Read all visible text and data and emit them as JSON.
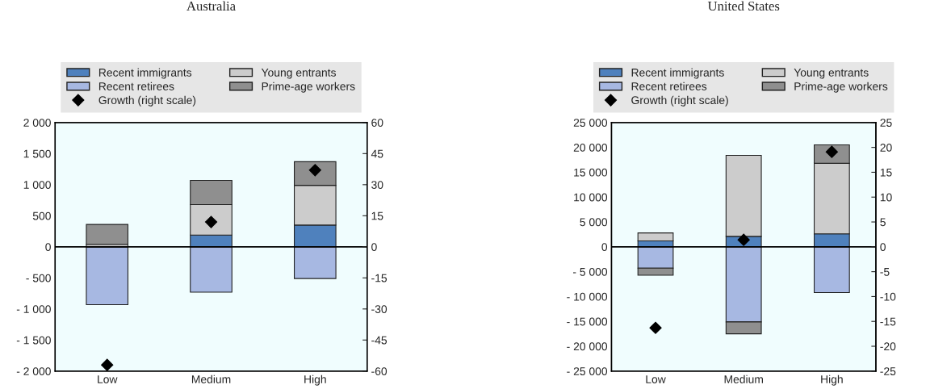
{
  "chart_data": [
    {
      "type": "bar",
      "title": "Australia",
      "categories": [
        "Low",
        "Medium",
        "High"
      ],
      "stacked": true,
      "legend": "top",
      "grid": false,
      "series": [
        {
          "name": "Recent immigrants",
          "color": "#4f81bd",
          "values": [
            null,
            190,
            350
          ]
        },
        {
          "name": "Recent retirees",
          "color": "#a7b8e2",
          "values": [
            -930,
            -730,
            -510
          ]
        },
        {
          "name": "Young entrants",
          "color": "#cccccc",
          "values": [
            40,
            490,
            640
          ]
        },
        {
          "name": "Prime-age workers",
          "color": "#8f8f8f",
          "values": [
            320,
            390,
            380
          ]
        },
        {
          "name": "Growth (right scale)",
          "type": "scatter",
          "axis": "y2",
          "marker": "diamond",
          "color": "#000000",
          "values": [
            -57,
            12,
            37
          ]
        }
      ],
      "ylim": [
        -2000,
        2000
      ],
      "yticks": [
        {
          "value": -2000,
          "label": "- 2 000"
        },
        {
          "value": -1500,
          "label": "- 1 500"
        },
        {
          "value": -1000,
          "label": "- 1 000"
        },
        {
          "value": -500,
          "label": "- 500"
        },
        0,
        {
          "value": 500,
          "label": "500"
        },
        {
          "value": 1000,
          "label": "1 000"
        },
        {
          "value": 1500,
          "label": "1 500"
        },
        {
          "value": 2000,
          "label": "2 000"
        }
      ],
      "y2lim": [
        -60,
        60
      ],
      "y2ticks": [
        -60,
        -45,
        -30,
        -15,
        0,
        15,
        30,
        45,
        60
      ],
      "ref_lines": [
        {
          "axis": "y",
          "value": 0,
          "color": "#000000"
        }
      ]
    },
    {
      "type": "bar",
      "title": "United States",
      "categories": [
        "Low",
        "Medium",
        "High"
      ],
      "stacked": true,
      "legend": "top",
      "grid": false,
      "series": [
        {
          "name": "Recent immigrants",
          "color": "#4f81bd",
          "values": [
            1200,
            2100,
            2600
          ]
        },
        {
          "name": "Recent retirees",
          "color": "#a7b8e2",
          "values": [
            -4300,
            -15100,
            -9200
          ]
        },
        {
          "name": "Young entrants",
          "color": "#cccccc",
          "values": [
            1600,
            16300,
            14200
          ]
        },
        {
          "name": "Prime-age workers",
          "color": "#8f8f8f",
          "values": [
            -1400,
            -2400,
            3700
          ]
        },
        {
          "name": "Growth (right scale)",
          "type": "scatter",
          "axis": "y2",
          "marker": "diamond",
          "color": "#000000",
          "values": [
            -16.3,
            1.4,
            19.1
          ]
        }
      ],
      "ylim": [
        -25000,
        25000
      ],
      "yticks": [
        {
          "value": -25000,
          "label": "- 25 000"
        },
        {
          "value": -20000,
          "label": "- 20 000"
        },
        {
          "value": -15000,
          "label": "- 15 000"
        },
        {
          "value": -10000,
          "label": "- 10 000"
        },
        {
          "value": -5000,
          "label": "- 5 000"
        },
        0,
        {
          "value": 5000,
          "label": "5 000"
        },
        {
          "value": 10000,
          "label": "10 000"
        },
        {
          "value": 15000,
          "label": "15 000"
        },
        {
          "value": 20000,
          "label": "20 000"
        },
        {
          "value": 25000,
          "label": "25 000"
        }
      ],
      "y2lim": [
        -25,
        25
      ],
      "y2ticks": [
        -25,
        -20,
        -15,
        -10,
        -5,
        0,
        5,
        10,
        15,
        20,
        25
      ],
      "ref_lines": [
        {
          "axis": "y",
          "value": 0,
          "color": "#000000"
        }
      ]
    }
  ]
}
